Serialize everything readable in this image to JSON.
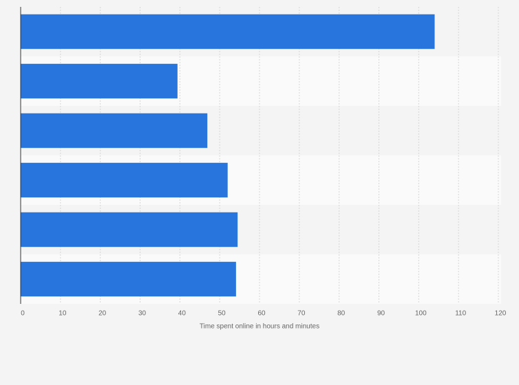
{
  "chart_data": {
    "type": "bar",
    "orientation": "horizontal",
    "categories": [
      null,
      null,
      null,
      null,
      null,
      null
    ],
    "values": [
      104,
      39.4,
      46.9,
      52,
      54.5,
      54.1
    ],
    "color": "#2876dd",
    "xlabel": "Time spent online in hours and minutes",
    "xlim": [
      0,
      120
    ],
    "xticks": [
      0,
      10,
      20,
      30,
      40,
      50,
      60,
      70,
      80,
      90,
      100,
      110,
      120
    ],
    "grid": true
  }
}
